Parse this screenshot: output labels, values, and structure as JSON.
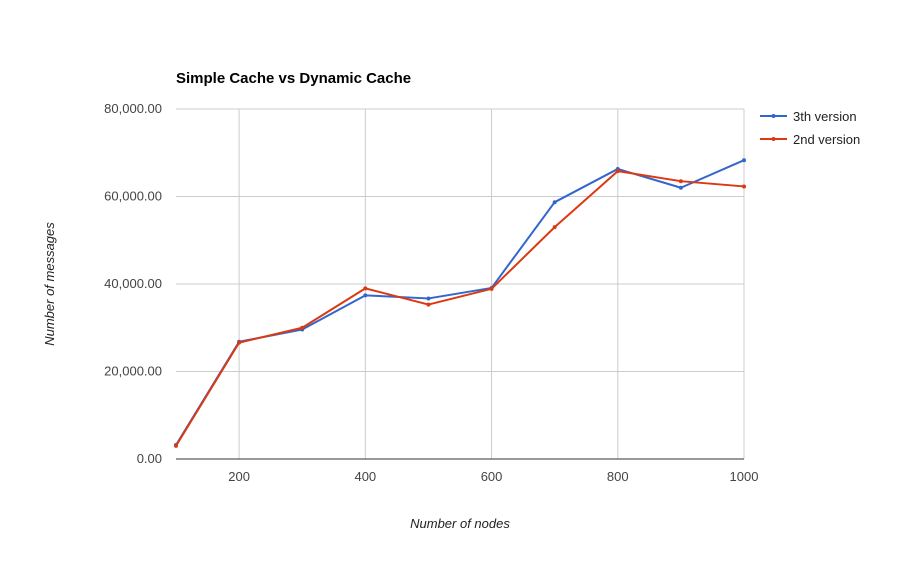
{
  "chart_data": {
    "type": "line",
    "title": "Simple Cache vs Dynamic Cache",
    "xlabel": "Number of nodes",
    "ylabel": "Number of messages",
    "x": [
      100,
      200,
      300,
      400,
      500,
      600,
      700,
      800,
      900,
      1000
    ],
    "x_ticks": [
      "200",
      "400",
      "600",
      "800",
      "1000"
    ],
    "x_tick_values": [
      200,
      400,
      600,
      800,
      1000
    ],
    "xlim": [
      100,
      1000
    ],
    "y_ticks": [
      "0.00",
      "20,000.00",
      "40,000.00",
      "60,000.00",
      "80,000.00"
    ],
    "y_tick_values": [
      0,
      20000,
      40000,
      60000,
      80000
    ],
    "ylim": [
      0,
      80000
    ],
    "grid": true,
    "legend_position": "right",
    "series": [
      {
        "name": "3th version",
        "color": "#3366cc",
        "values": [
          3200,
          26800,
          29600,
          37400,
          36700,
          39100,
          58700,
          66300,
          62000,
          68300
        ]
      },
      {
        "name": "2nd version",
        "color": "#dc3912",
        "values": [
          3000,
          26600,
          30000,
          39000,
          35300,
          38900,
          53000,
          65800,
          63500,
          62300
        ]
      }
    ]
  }
}
